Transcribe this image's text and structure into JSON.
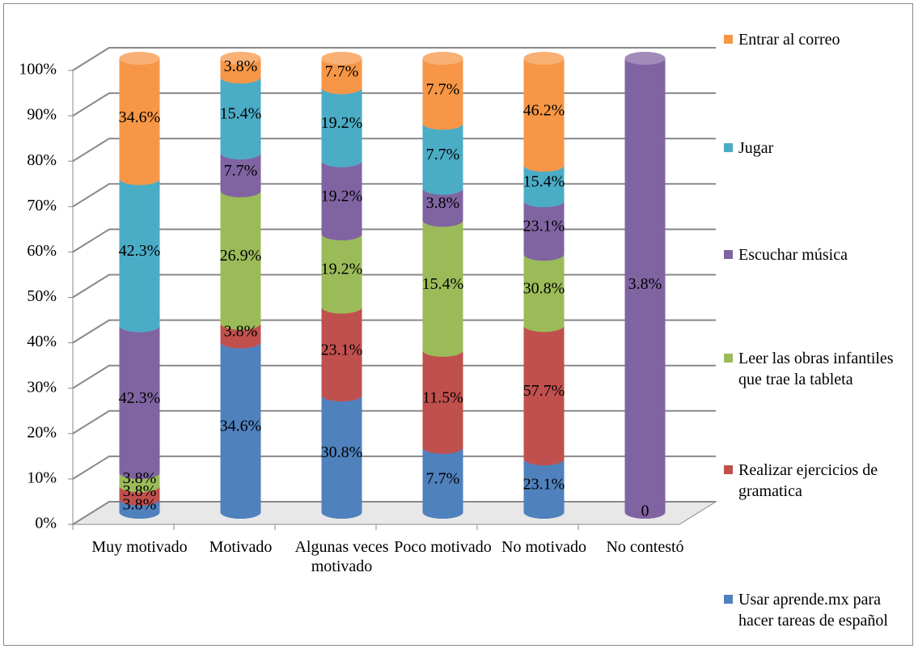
{
  "chart_data": {
    "type": "bar",
    "stack": "percent",
    "three_d": "cylinder",
    "categories": [
      "Muy motivado",
      "Motivado",
      "Algunas veces motivado",
      "Poco motivado",
      "No motivado",
      "No contestó"
    ],
    "ylim": [
      0,
      100
    ],
    "yticks": [
      {
        "value": 0,
        "label": "0%"
      },
      {
        "value": 10,
        "label": "10%"
      },
      {
        "value": 20,
        "label": "20%"
      },
      {
        "value": 30,
        "label": "30%"
      },
      {
        "value": 40,
        "label": "40%"
      },
      {
        "value": 50,
        "label": "50%"
      },
      {
        "value": 60,
        "label": "60%"
      },
      {
        "value": 70,
        "label": "70%"
      },
      {
        "value": 80,
        "label": "80%"
      },
      {
        "value": 90,
        "label": "90%"
      },
      {
        "value": 100,
        "label": "100%"
      }
    ],
    "grid": true,
    "legend": "right",
    "series": [
      {
        "name": "Usar aprende.mx para hacer tareas de español",
        "color": "#4f81bd",
        "values": [
          3.8,
          34.6,
          30.8,
          7.7,
          23.1,
          0
        ],
        "value_labels": [
          "3.8%",
          "34.6%",
          "30.8%",
          "7.7%",
          "23.1%",
          "0"
        ]
      },
      {
        "name": "Realizar ejercicios de gramatica",
        "color": "#c0504d",
        "values": [
          3.8,
          3.8,
          23.1,
          11.5,
          57.7,
          null
        ],
        "value_labels": [
          "3.8%",
          "3.8%",
          "23.1%",
          "11.5%",
          "57.7%",
          null
        ]
      },
      {
        "name": "Leer las obras infantiles que trae la tableta",
        "color": "#9bbb59",
        "values": [
          3.8,
          26.9,
          19.2,
          15.4,
          30.8,
          null
        ],
        "value_labels": [
          "3.8%",
          "26.9%",
          "19.2%",
          "15.4%",
          "30.8%",
          null
        ]
      },
      {
        "name": "Escuchar música",
        "color": "#8064a2",
        "values": [
          42.3,
          7.7,
          19.2,
          3.8,
          23.1,
          3.8
        ],
        "value_labels": [
          "42.3%",
          "7.7%",
          "19.2%",
          "3.8%",
          "23.1%",
          "3.8%"
        ]
      },
      {
        "name": "Jugar",
        "color": "#4bacc6",
        "values": [
          42.3,
          15.4,
          19.2,
          7.7,
          15.4,
          null
        ],
        "value_labels": [
          "42.3%",
          "15.4%",
          "19.2%",
          "7.7%",
          "15.4%",
          null
        ]
      },
      {
        "name": "Entrar al correo",
        "color": "#f79646",
        "values": [
          34.6,
          3.8,
          7.7,
          7.7,
          46.2,
          null
        ],
        "value_labels": [
          "34.6%",
          "3.8%",
          "7.7%",
          "7.7%",
          "46.2%",
          null
        ]
      }
    ]
  }
}
